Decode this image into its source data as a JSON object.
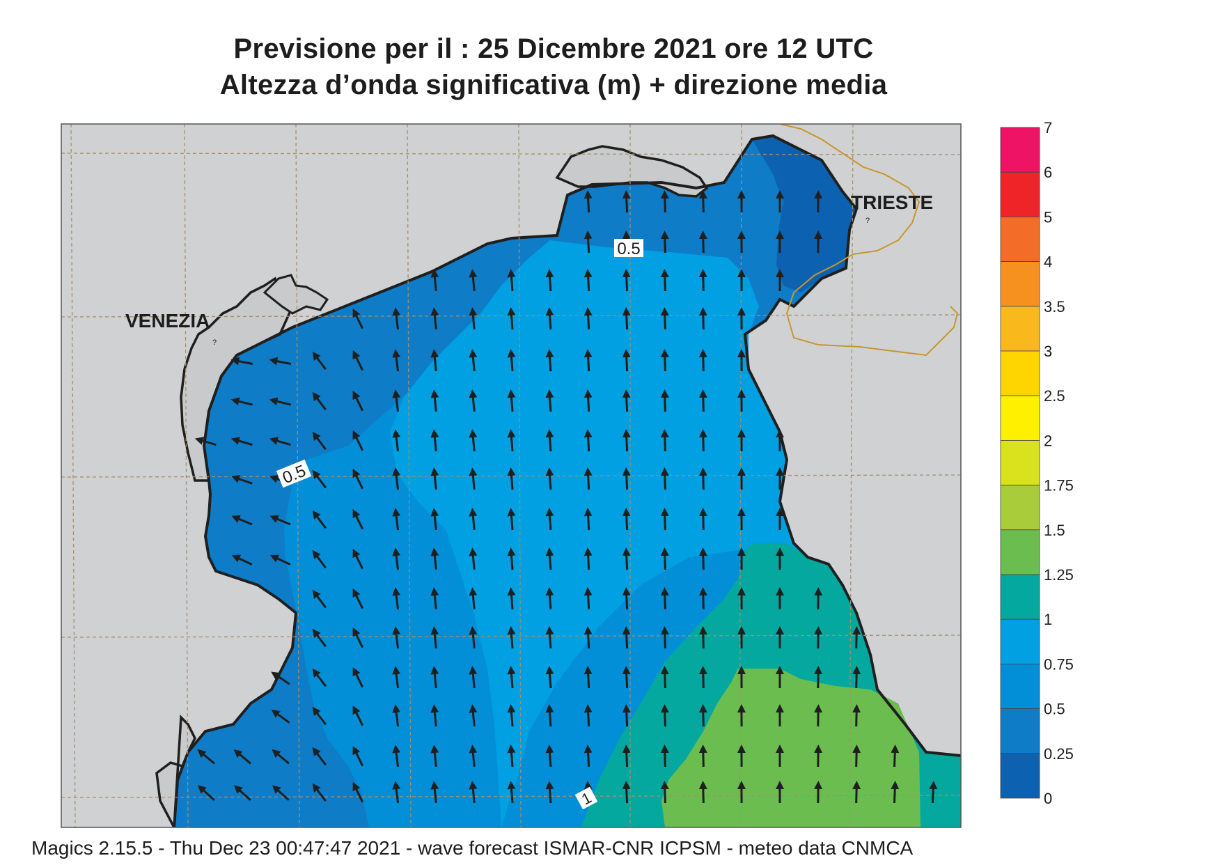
{
  "title": {
    "line1": "Previsione per il  :  25 Dicembre  2021   ore 12 UTC",
    "line2": "Altezza d’onda significativa (m) + direzione media"
  },
  "cities": [
    {
      "name": "VENEZIA"
    },
    {
      "name": "TRIESTE"
    }
  ],
  "contour_labels": {
    "north": "0.5",
    "west": "0.5",
    "south": "1"
  },
  "legend": {
    "units": "m",
    "labels": [
      "7",
      "6",
      "5",
      "4",
      "3.5",
      "3",
      "2.5",
      "2",
      "1.75",
      "1.5",
      "1.25",
      "1",
      "0.75",
      "0.5",
      "0.25",
      "0"
    ],
    "colors": [
      "#ee1364",
      "#ee2429",
      "#f36d28",
      "#f6901f",
      "#f9b81c",
      "#ffd500",
      "#fff000",
      "#d9e21c",
      "#a9cc3a",
      "#6cbd4f",
      "#04a89f",
      "#00a0e2",
      "#028fd8",
      "#0f7cc7",
      "#0c62b1"
    ]
  },
  "map_colors": {
    "land": "#d0d1d3",
    "lagoon": "#c9cacc",
    "frame_grid": "#a58f68",
    "border": "#c8962c"
  },
  "footer": "Magics 2.15.5 - Thu Dec 23 00:47:47 2021 - wave forecast  ISMAR-CNR  ICPSM - meteo data   CNMCA"
}
